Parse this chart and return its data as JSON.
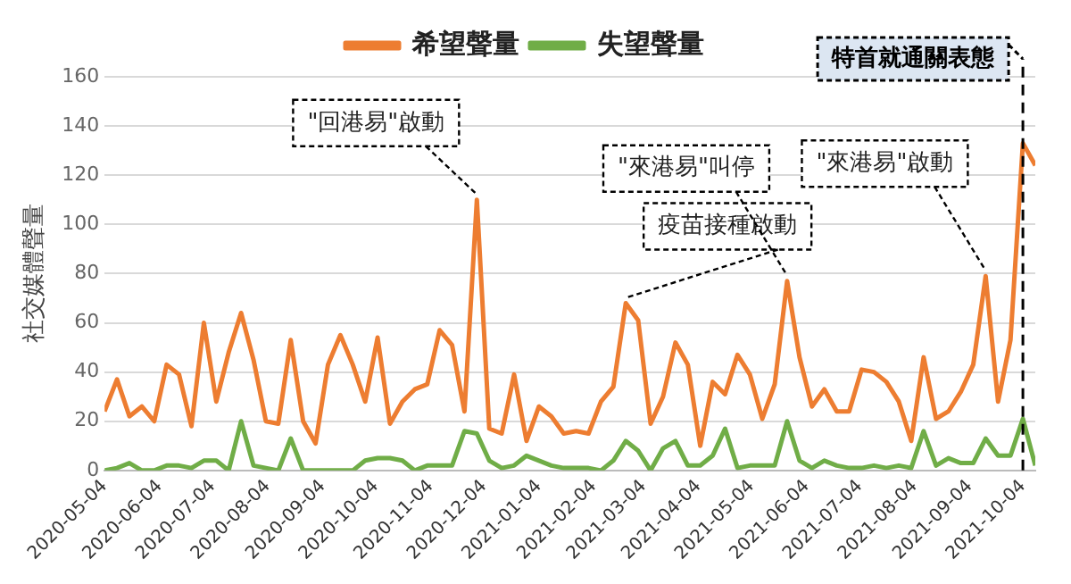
{
  "chart_data": {
    "type": "line",
    "ylabel": "社交媒體聲量",
    "x": [
      "2020-05-04",
      "2020-05-11",
      "2020-05-18",
      "2020-05-25",
      "2020-06-01",
      "2020-06-08",
      "2020-06-15",
      "2020-06-22",
      "2020-06-29",
      "2020-07-06",
      "2020-07-13",
      "2020-07-20",
      "2020-07-27",
      "2020-08-03",
      "2020-08-10",
      "2020-08-17",
      "2020-08-24",
      "2020-08-31",
      "2020-09-07",
      "2020-09-14",
      "2020-09-21",
      "2020-09-28",
      "2020-10-05",
      "2020-10-12",
      "2020-10-19",
      "2020-10-26",
      "2020-11-02",
      "2020-11-09",
      "2020-11-16",
      "2020-11-23",
      "2020-11-30",
      "2020-12-07",
      "2020-12-14",
      "2020-12-21",
      "2020-12-28",
      "2021-01-04",
      "2021-01-11",
      "2021-01-18",
      "2021-01-25",
      "2021-02-01",
      "2021-02-08",
      "2021-02-15",
      "2021-02-22",
      "2021-03-01",
      "2021-03-08",
      "2021-03-15",
      "2021-03-22",
      "2021-03-29",
      "2021-04-05",
      "2021-04-12",
      "2021-04-19",
      "2021-04-26",
      "2021-05-03",
      "2021-05-10",
      "2021-05-17",
      "2021-05-24",
      "2021-05-31",
      "2021-06-07",
      "2021-06-14",
      "2021-06-21",
      "2021-06-28",
      "2021-07-05",
      "2021-07-12",
      "2021-07-19",
      "2021-07-26",
      "2021-08-02",
      "2021-08-09",
      "2021-08-16",
      "2021-08-23",
      "2021-08-30",
      "2021-09-06",
      "2021-09-13",
      "2021-09-20",
      "2021-09-27",
      "2021-10-04",
      "2021-10-11"
    ],
    "series": [
      {
        "name": "希望聲量",
        "color": "#ed7d31",
        "values": [
          24,
          37,
          22,
          26,
          20,
          43,
          39,
          18,
          60,
          28,
          48,
          64,
          45,
          20,
          19,
          53,
          20,
          11,
          43,
          55,
          43,
          28,
          54,
          19,
          28,
          33,
          35,
          57,
          51,
          24,
          110,
          17,
          15,
          39,
          12,
          26,
          22,
          15,
          16,
          15,
          28,
          34,
          68,
          61,
          19,
          30,
          52,
          43,
          10,
          36,
          31,
          47,
          39,
          21,
          35,
          77,
          46,
          26,
          33,
          24,
          24,
          41,
          40,
          36,
          28,
          12,
          46,
          21,
          24,
          32,
          43,
          79,
          28,
          53,
          133,
          124
        ]
      },
      {
        "name": "失望聲量",
        "color": "#70ad47",
        "values": [
          0,
          1,
          3,
          0,
          0,
          2,
          2,
          1,
          4,
          4,
          0,
          20,
          2,
          1,
          0,
          13,
          0,
          0,
          0,
          0,
          0,
          4,
          5,
          5,
          4,
          0,
          2,
          2,
          2,
          16,
          15,
          4,
          1,
          2,
          6,
          4,
          2,
          1,
          1,
          1,
          0,
          4,
          12,
          8,
          0,
          9,
          12,
          2,
          2,
          6,
          17,
          1,
          2,
          2,
          2,
          20,
          4,
          1,
          4,
          2,
          1,
          1,
          2,
          1,
          2,
          1,
          16,
          2,
          5,
          3,
          3,
          13,
          6,
          6,
          21,
          2
        ]
      }
    ],
    "xlim": [
      "2020-05-04",
      "2021-10-11"
    ],
    "xticks": [
      "2020-05-04",
      "2020-06-04",
      "2020-07-04",
      "2020-08-04",
      "2020-09-04",
      "2020-10-04",
      "2020-11-04",
      "2020-12-04",
      "2021-01-04",
      "2021-02-04",
      "2021-03-04",
      "2021-04-04",
      "2021-05-04",
      "2021-06-04",
      "2021-07-04",
      "2021-08-04",
      "2021-09-04",
      "2021-10-04"
    ],
    "ylim": [
      0,
      160
    ],
    "yticks": [
      0,
      20,
      40,
      60,
      80,
      100,
      120,
      140,
      160
    ],
    "grid": "y",
    "legend": "top",
    "marker": "none",
    "line_style": "solid",
    "annotations": [
      {
        "text": "\"回港易\"啟動",
        "x": "2020-11-30",
        "y": 110
      },
      {
        "text": "疫苗接種啟動",
        "x": "2021-02-22",
        "y": 68
      },
      {
        "text": "\"來港易\"叫停",
        "x": "2021-05-24",
        "y": 77
      },
      {
        "text": "\"來港易\"啟動",
        "x": "2021-09-13",
        "y": 79
      }
    ],
    "ref_lines": [
      {
        "axis": "x",
        "value": "2021-10-04",
        "label": "特首就通關表態",
        "line_style": "dashed"
      }
    ]
  }
}
